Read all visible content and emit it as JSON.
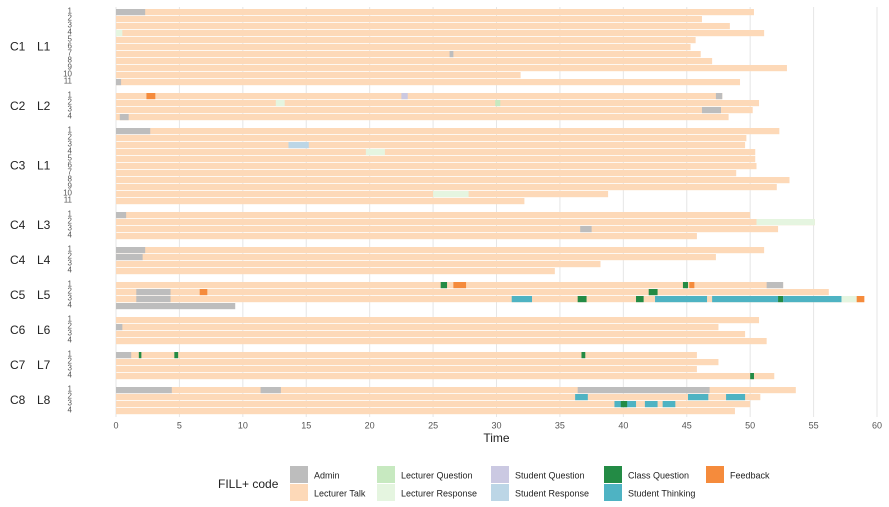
{
  "chart_data": {
    "type": "timeline",
    "xlabel": "Time",
    "xlim": [
      0,
      60
    ],
    "xticks": [
      0,
      5,
      10,
      15,
      20,
      25,
      30,
      35,
      40,
      45,
      50,
      55,
      60
    ],
    "grid": true,
    "legend_title": "FILL+ code",
    "codes": [
      {
        "name": "Admin",
        "color": "#bdbdbd"
      },
      {
        "name": "Lecturer Talk",
        "color": "#fdd9b8"
      },
      {
        "name": "Lecturer Question",
        "color": "#c7e9c0"
      },
      {
        "name": "Lecturer Response",
        "color": "#e5f5e0"
      },
      {
        "name": "Student Question",
        "color": "#cbc9e2"
      },
      {
        "name": "Student Response",
        "color": "#bcd6e6"
      },
      {
        "name": "Class Question",
        "color": "#238b45"
      },
      {
        "name": "Student Thinking",
        "color": "#4eb3c3"
      },
      {
        "name": "Feedback",
        "color": "#f58b3c"
      }
    ],
    "groups": [
      {
        "course": "C1",
        "lecture": "L1",
        "rows": [
          {
            "label": "1",
            "segments": [
              {
                "code": "Lecturer Talk",
                "start": 0,
                "end": 50.3
              },
              {
                "code": "Admin",
                "start": 0,
                "end": 2.3
              }
            ]
          },
          {
            "label": "2",
            "segments": [
              {
                "code": "Lecturer Talk",
                "start": 0,
                "end": 46.2
              }
            ]
          },
          {
            "label": "3",
            "segments": [
              {
                "code": "Lecturer Talk",
                "start": 0,
                "end": 48.4
              }
            ]
          },
          {
            "label": "4",
            "segments": [
              {
                "code": "Lecturer Talk",
                "start": 0,
                "end": 51.1
              },
              {
                "code": "Lecturer Response",
                "start": 0,
                "end": 0.5
              }
            ]
          },
          {
            "label": "5",
            "segments": [
              {
                "code": "Lecturer Talk",
                "start": 0,
                "end": 45.7
              }
            ]
          },
          {
            "label": "6",
            "segments": [
              {
                "code": "Lecturer Talk",
                "start": 0,
                "end": 45.3
              }
            ]
          },
          {
            "label": "7",
            "segments": [
              {
                "code": "Lecturer Talk",
                "start": 0,
                "end": 46.1
              },
              {
                "code": "Admin",
                "start": 26.3,
                "end": 26.6
              }
            ]
          },
          {
            "label": "8",
            "segments": [
              {
                "code": "Lecturer Talk",
                "start": 0,
                "end": 47
              }
            ]
          },
          {
            "label": "9",
            "segments": [
              {
                "code": "Lecturer Talk",
                "start": 0,
                "end": 52.9
              }
            ]
          },
          {
            "label": "10",
            "segments": [
              {
                "code": "Lecturer Talk",
                "start": 0,
                "end": 31.9
              }
            ]
          },
          {
            "label": "11",
            "segments": [
              {
                "code": "Lecturer Talk",
                "start": 0,
                "end": 49.2
              },
              {
                "code": "Admin",
                "start": 0,
                "end": 0.4
              }
            ]
          }
        ]
      },
      {
        "course": "C2",
        "lecture": "L2",
        "rows": [
          {
            "label": "1",
            "segments": [
              {
                "code": "Lecturer Talk",
                "start": 0,
                "end": 47.8
              },
              {
                "code": "Feedback",
                "start": 2.4,
                "end": 3.1
              },
              {
                "code": "Student Question",
                "start": 22.5,
                "end": 23
              },
              {
                "code": "Admin",
                "start": 47.3,
                "end": 47.8
              }
            ]
          },
          {
            "label": "2",
            "segments": [
              {
                "code": "Lecturer Talk",
                "start": 0,
                "end": 50.7
              },
              {
                "code": "Lecturer Response",
                "start": 12.6,
                "end": 13.3
              },
              {
                "code": "Lecturer Question",
                "start": 29.9,
                "end": 30.3
              }
            ]
          },
          {
            "label": "3",
            "segments": [
              {
                "code": "Lecturer Talk",
                "start": 0,
                "end": 50.2
              },
              {
                "code": "Admin",
                "start": 46.2,
                "end": 47.7
              }
            ]
          },
          {
            "label": "4",
            "segments": [
              {
                "code": "Lecturer Talk",
                "start": 0,
                "end": 48.3
              },
              {
                "code": "Admin",
                "start": 0.3,
                "end": 1
              }
            ]
          }
        ]
      },
      {
        "course": "C3",
        "lecture": "L1",
        "rows": [
          {
            "label": "1",
            "segments": [
              {
                "code": "Lecturer Talk",
                "start": 0,
                "end": 52.3
              },
              {
                "code": "Admin",
                "start": 0,
                "end": 2.7
              }
            ]
          },
          {
            "label": "2",
            "segments": [
              {
                "code": "Lecturer Talk",
                "start": 0,
                "end": 49.7
              }
            ]
          },
          {
            "label": "3",
            "segments": [
              {
                "code": "Lecturer Talk",
                "start": 0,
                "end": 49.6
              },
              {
                "code": "Student Response",
                "start": 13.6,
                "end": 15.2
              }
            ]
          },
          {
            "label": "4",
            "segments": [
              {
                "code": "Lecturer Talk",
                "start": 0,
                "end": 50.4
              },
              {
                "code": "Lecturer Response",
                "start": 19.7,
                "end": 21.2
              }
            ]
          },
          {
            "label": "5",
            "segments": [
              {
                "code": "Lecturer Talk",
                "start": 0,
                "end": 50.4
              }
            ]
          },
          {
            "label": "6",
            "segments": [
              {
                "code": "Lecturer Talk",
                "start": 0,
                "end": 50.5
              }
            ]
          },
          {
            "label": "7",
            "segments": [
              {
                "code": "Lecturer Talk",
                "start": 0,
                "end": 48.9
              }
            ]
          },
          {
            "label": "8",
            "segments": [
              {
                "code": "Lecturer Talk",
                "start": 0,
                "end": 53.1
              }
            ]
          },
          {
            "label": "9",
            "segments": [
              {
                "code": "Lecturer Talk",
                "start": 0,
                "end": 52.1
              }
            ]
          },
          {
            "label": "10",
            "segments": [
              {
                "code": "Lecturer Talk",
                "start": 0,
                "end": 38.8
              },
              {
                "code": "Lecturer Response",
                "start": 25,
                "end": 27.8
              }
            ]
          },
          {
            "label": "11",
            "segments": [
              {
                "code": "Lecturer Talk",
                "start": 0,
                "end": 32.2
              }
            ]
          }
        ]
      },
      {
        "course": "C4",
        "lecture": "L3",
        "rows": [
          {
            "label": "1",
            "segments": [
              {
                "code": "Lecturer Talk",
                "start": 0,
                "end": 50
              },
              {
                "code": "Admin",
                "start": 0,
                "end": 0.8
              }
            ]
          },
          {
            "label": "2",
            "segments": [
              {
                "code": "Lecturer Talk",
                "start": 0,
                "end": 55.1
              },
              {
                "code": "Lecturer Response",
                "start": 50.5,
                "end": 55.1
              }
            ]
          },
          {
            "label": "3",
            "segments": [
              {
                "code": "Lecturer Talk",
                "start": 0,
                "end": 52.2
              },
              {
                "code": "Admin",
                "start": 36.6,
                "end": 37.5
              }
            ]
          },
          {
            "label": "4",
            "segments": [
              {
                "code": "Lecturer Talk",
                "start": 0,
                "end": 45.8
              }
            ]
          }
        ]
      },
      {
        "course": "C4",
        "lecture": "L4",
        "rows": [
          {
            "label": "1",
            "segments": [
              {
                "code": "Lecturer Talk",
                "start": 0,
                "end": 51.1
              },
              {
                "code": "Admin",
                "start": 0,
                "end": 2.3
              }
            ]
          },
          {
            "label": "2",
            "segments": [
              {
                "code": "Lecturer Talk",
                "start": 0,
                "end": 47.3
              },
              {
                "code": "Admin",
                "start": 0,
                "end": 2.1
              }
            ]
          },
          {
            "label": "3",
            "segments": [
              {
                "code": "Lecturer Talk",
                "start": 0,
                "end": 38.2
              }
            ]
          },
          {
            "label": "4",
            "segments": [
              {
                "code": "Lecturer Talk",
                "start": 0,
                "end": 34.6
              }
            ]
          }
        ]
      },
      {
        "course": "C5",
        "lecture": "L5",
        "rows": [
          {
            "label": "1",
            "segments": [
              {
                "code": "Lecturer Talk",
                "start": 0,
                "end": 52.6
              },
              {
                "code": "Class Question",
                "start": 25.6,
                "end": 26.1
              },
              {
                "code": "Feedback",
                "start": 26.6,
                "end": 27.6
              },
              {
                "code": "Class Question",
                "start": 44.7,
                "end": 45.1
              },
              {
                "code": "Feedback",
                "start": 45.2,
                "end": 45.6
              },
              {
                "code": "Admin",
                "start": 51.3,
                "end": 52.6
              }
            ]
          },
          {
            "label": "2",
            "segments": [
              {
                "code": "Lecturer Talk",
                "start": 0,
                "end": 56.2
              },
              {
                "code": "Admin",
                "start": 1.6,
                "end": 4.3
              },
              {
                "code": "Feedback",
                "start": 6.6,
                "end": 7.2
              },
              {
                "code": "Class Question",
                "start": 42,
                "end": 42.7
              }
            ]
          },
          {
            "label": "3",
            "segments": [
              {
                "code": "Lecturer Talk",
                "start": 0,
                "end": 59
              },
              {
                "code": "Admin",
                "start": 1.6,
                "end": 4.3
              },
              {
                "code": "Student Thinking",
                "start": 31.2,
                "end": 32.8
              },
              {
                "code": "Class Question",
                "start": 36.4,
                "end": 37.1
              },
              {
                "code": "Class Question",
                "start": 41,
                "end": 41.6
              },
              {
                "code": "Student Thinking",
                "start": 42.5,
                "end": 46.6
              },
              {
                "code": "Student Thinking",
                "start": 47,
                "end": 52.2
              },
              {
                "code": "Class Question",
                "start": 52.2,
                "end": 52.6
              },
              {
                "code": "Student Thinking",
                "start": 52.6,
                "end": 57.2
              },
              {
                "code": "Lecturer Response",
                "start": 57.2,
                "end": 58.4
              },
              {
                "code": "Feedback",
                "start": 58.4,
                "end": 59
              }
            ]
          },
          {
            "label": "4",
            "segments": [
              {
                "code": "Admin",
                "start": 0,
                "end": 9.4
              }
            ]
          }
        ]
      },
      {
        "course": "C6",
        "lecture": "L6",
        "rows": [
          {
            "label": "1",
            "segments": [
              {
                "code": "Lecturer Talk",
                "start": 0,
                "end": 50.7
              }
            ]
          },
          {
            "label": "2",
            "segments": [
              {
                "code": "Lecturer Talk",
                "start": 0,
                "end": 47.5
              },
              {
                "code": "Admin",
                "start": 0,
                "end": 0.5
              }
            ]
          },
          {
            "label": "3",
            "segments": [
              {
                "code": "Lecturer Talk",
                "start": 0,
                "end": 49.6
              }
            ]
          },
          {
            "label": "4",
            "segments": [
              {
                "code": "Lecturer Talk",
                "start": 0,
                "end": 51.3
              }
            ]
          }
        ]
      },
      {
        "course": "C7",
        "lecture": "L7",
        "rows": [
          {
            "label": "1",
            "segments": [
              {
                "code": "Lecturer Talk",
                "start": 0,
                "end": 45.8
              },
              {
                "code": "Admin",
                "start": 0,
                "end": 1.2
              },
              {
                "code": "Class Question",
                "start": 1.8,
                "end": 2
              },
              {
                "code": "Class Question",
                "start": 4.6,
                "end": 4.9
              },
              {
                "code": "Class Question",
                "start": 36.7,
                "end": 37
              }
            ]
          },
          {
            "label": "2",
            "segments": [
              {
                "code": "Lecturer Talk",
                "start": 0,
                "end": 47.5
              }
            ]
          },
          {
            "label": "3",
            "segments": [
              {
                "code": "Lecturer Talk",
                "start": 0,
                "end": 45.8
              }
            ]
          },
          {
            "label": "4",
            "segments": [
              {
                "code": "Lecturer Talk",
                "start": 0,
                "end": 51.9
              },
              {
                "code": "Class Question",
                "start": 50,
                "end": 50.3
              }
            ]
          }
        ]
      },
      {
        "course": "C8",
        "lecture": "L8",
        "rows": [
          {
            "label": "1",
            "segments": [
              {
                "code": "Lecturer Talk",
                "start": 0,
                "end": 53.6
              },
              {
                "code": "Admin",
                "start": 0,
                "end": 4.4
              },
              {
                "code": "Admin",
                "start": 11.4,
                "end": 13
              },
              {
                "code": "Admin",
                "start": 36.4,
                "end": 46.8
              }
            ]
          },
          {
            "label": "2",
            "segments": [
              {
                "code": "Lecturer Talk",
                "start": 0,
                "end": 50.8
              },
              {
                "code": "Student Thinking",
                "start": 36.2,
                "end": 37.2
              },
              {
                "code": "Student Thinking",
                "start": 45.1,
                "end": 46.7
              },
              {
                "code": "Student Thinking",
                "start": 48.1,
                "end": 49.6
              }
            ]
          },
          {
            "label": "3",
            "segments": [
              {
                "code": "Lecturer Talk",
                "start": 0,
                "end": 50
              },
              {
                "code": "Student Thinking",
                "start": 39.3,
                "end": 41
              },
              {
                "code": "Class Question",
                "start": 39.8,
                "end": 40.3
              },
              {
                "code": "Student Thinking",
                "start": 41.7,
                "end": 42.7
              },
              {
                "code": "Student Thinking",
                "start": 43.1,
                "end": 44.1
              }
            ]
          },
          {
            "label": "4",
            "segments": [
              {
                "code": "Lecturer Talk",
                "start": 0,
                "end": 48.8
              }
            ]
          }
        ]
      }
    ]
  }
}
